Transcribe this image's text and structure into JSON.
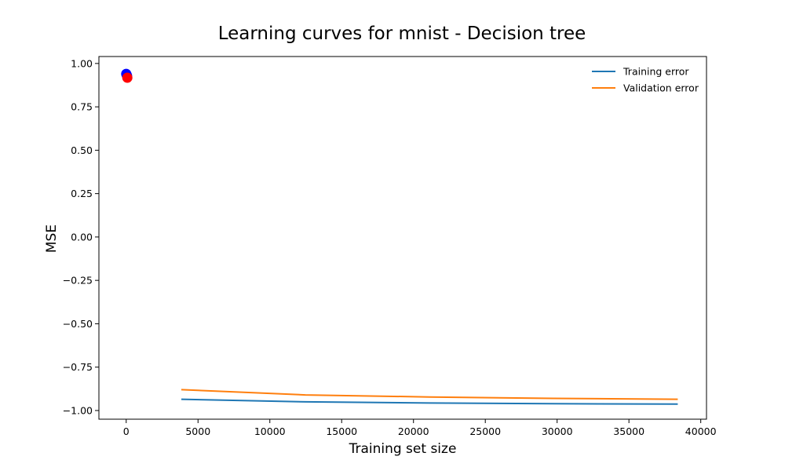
{
  "chart_data": {
    "type": "line",
    "title": "Learning curves for mnist - Decision tree",
    "xlabel": "Training set size",
    "ylabel": "MSE",
    "xlim": [
      -1900,
      40400
    ],
    "ylim": [
      -1.05,
      1.04
    ],
    "xticks": [
      0,
      5000,
      10000,
      15000,
      20000,
      25000,
      30000,
      35000,
      40000
    ],
    "yticks": [
      -1.0,
      -0.75,
      -0.5,
      -0.25,
      0.0,
      0.25,
      0.5,
      0.75,
      1.0
    ],
    "xtick_labels": [
      "0",
      "5000",
      "10000",
      "15000",
      "20000",
      "25000",
      "30000",
      "35000",
      "40000"
    ],
    "ytick_labels": [
      "−1.00",
      "−0.75",
      "−0.50",
      "−0.25",
      "0.00",
      "0.25",
      "0.50",
      "0.75",
      "1.00"
    ],
    "grid": false,
    "legend_position": "upper-right",
    "series": [
      {
        "name": "Training error",
        "color": "#1f77b4",
        "x": [
          3840,
          12480,
          21120,
          29760,
          38400
        ],
        "y": [
          -0.935,
          -0.95,
          -0.957,
          -0.961,
          -0.963
        ]
      },
      {
        "name": "Validation error",
        "color": "#ff7f0e",
        "x": [
          3840,
          12480,
          21120,
          29760,
          38400
        ],
        "y": [
          -0.88,
          -0.91,
          -0.922,
          -0.93,
          -0.935
        ]
      }
    ],
    "scatter": [
      {
        "color": "#0000ff",
        "x": [
          0,
          30,
          60
        ],
        "y": [
          0.94,
          0.935,
          0.928
        ]
      },
      {
        "color": "#ff0000",
        "x": [
          80
        ],
        "y": [
          0.918
        ]
      }
    ]
  }
}
